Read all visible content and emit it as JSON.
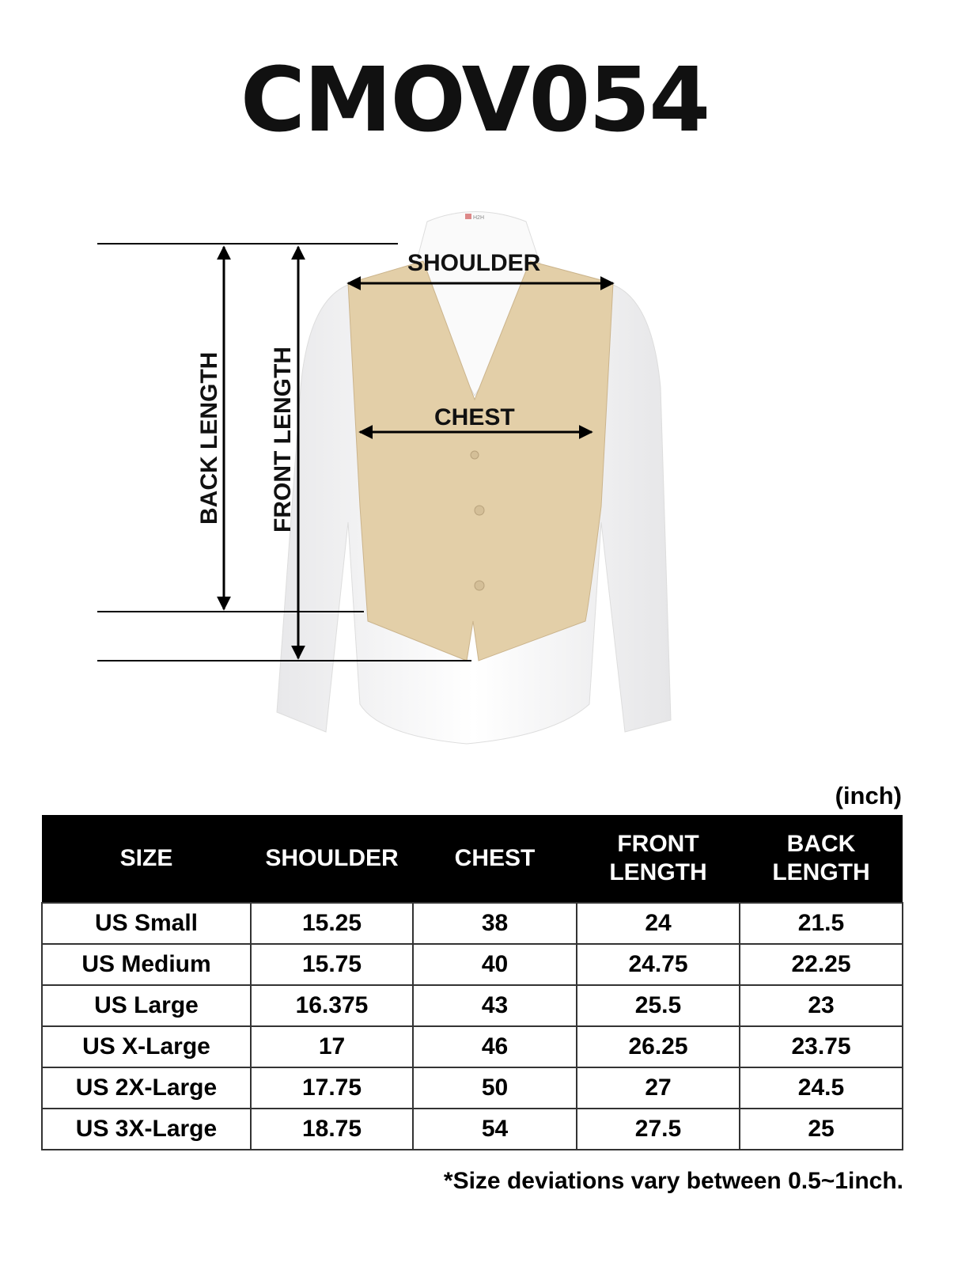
{
  "title": "CMOV054",
  "logo_text": "H2H",
  "diagram": {
    "shoulder": "SHOULDER",
    "chest": "CHEST",
    "back_length": "BACK LENGTH",
    "front_length": "FRONT LENGTH",
    "colors": {
      "vest": "#e3cfa8",
      "shirt": "#ffffff",
      "arrows": "#000000"
    }
  },
  "unit": "(inch)",
  "table": {
    "headers": [
      "SIZE",
      "SHOULDER",
      "CHEST",
      "FRONT LENGTH",
      "BACK LENGTH"
    ],
    "rows": [
      [
        "US Small",
        "15.25",
        "38",
        "24",
        "21.5"
      ],
      [
        "US Medium",
        "15.75",
        "40",
        "24.75",
        "22.25"
      ],
      [
        "US Large",
        "16.375",
        "43",
        "25.5",
        "23"
      ],
      [
        "US X-Large",
        "17",
        "46",
        "26.25",
        "23.75"
      ],
      [
        "US 2X-Large",
        "17.75",
        "50",
        "27",
        "24.5"
      ],
      [
        "US 3X-Large",
        "18.75",
        "54",
        "27.5",
        "25"
      ]
    ]
  },
  "note": "*Size deviations vary between 0.5~1inch."
}
